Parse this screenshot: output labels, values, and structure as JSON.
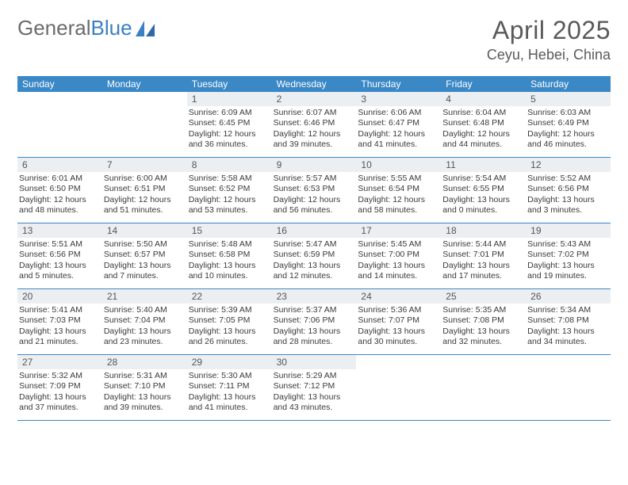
{
  "brand": {
    "part1": "General",
    "part2": "Blue"
  },
  "title": "April 2025",
  "location": "Ceyu, Hebei, China",
  "weekdays": [
    "Sunday",
    "Monday",
    "Tuesday",
    "Wednesday",
    "Thursday",
    "Friday",
    "Saturday"
  ],
  "colors": {
    "header_bg": "#3b88c6",
    "header_text": "#ffffff",
    "daynum_bg": "#eceff2",
    "rule": "#3b88c6",
    "brand_gray": "#6b6b6b",
    "brand_blue": "#3b7fc4"
  },
  "weeks": [
    [
      {
        "n": "",
        "sunrise": "",
        "sunset": "",
        "daylight": ""
      },
      {
        "n": "",
        "sunrise": "",
        "sunset": "",
        "daylight": ""
      },
      {
        "n": "1",
        "sunrise": "Sunrise: 6:09 AM",
        "sunset": "Sunset: 6:45 PM",
        "daylight": "Daylight: 12 hours and 36 minutes."
      },
      {
        "n": "2",
        "sunrise": "Sunrise: 6:07 AM",
        "sunset": "Sunset: 6:46 PM",
        "daylight": "Daylight: 12 hours and 39 minutes."
      },
      {
        "n": "3",
        "sunrise": "Sunrise: 6:06 AM",
        "sunset": "Sunset: 6:47 PM",
        "daylight": "Daylight: 12 hours and 41 minutes."
      },
      {
        "n": "4",
        "sunrise": "Sunrise: 6:04 AM",
        "sunset": "Sunset: 6:48 PM",
        "daylight": "Daylight: 12 hours and 44 minutes."
      },
      {
        "n": "5",
        "sunrise": "Sunrise: 6:03 AM",
        "sunset": "Sunset: 6:49 PM",
        "daylight": "Daylight: 12 hours and 46 minutes."
      }
    ],
    [
      {
        "n": "6",
        "sunrise": "Sunrise: 6:01 AM",
        "sunset": "Sunset: 6:50 PM",
        "daylight": "Daylight: 12 hours and 48 minutes."
      },
      {
        "n": "7",
        "sunrise": "Sunrise: 6:00 AM",
        "sunset": "Sunset: 6:51 PM",
        "daylight": "Daylight: 12 hours and 51 minutes."
      },
      {
        "n": "8",
        "sunrise": "Sunrise: 5:58 AM",
        "sunset": "Sunset: 6:52 PM",
        "daylight": "Daylight: 12 hours and 53 minutes."
      },
      {
        "n": "9",
        "sunrise": "Sunrise: 5:57 AM",
        "sunset": "Sunset: 6:53 PM",
        "daylight": "Daylight: 12 hours and 56 minutes."
      },
      {
        "n": "10",
        "sunrise": "Sunrise: 5:55 AM",
        "sunset": "Sunset: 6:54 PM",
        "daylight": "Daylight: 12 hours and 58 minutes."
      },
      {
        "n": "11",
        "sunrise": "Sunrise: 5:54 AM",
        "sunset": "Sunset: 6:55 PM",
        "daylight": "Daylight: 13 hours and 0 minutes."
      },
      {
        "n": "12",
        "sunrise": "Sunrise: 5:52 AM",
        "sunset": "Sunset: 6:56 PM",
        "daylight": "Daylight: 13 hours and 3 minutes."
      }
    ],
    [
      {
        "n": "13",
        "sunrise": "Sunrise: 5:51 AM",
        "sunset": "Sunset: 6:56 PM",
        "daylight": "Daylight: 13 hours and 5 minutes."
      },
      {
        "n": "14",
        "sunrise": "Sunrise: 5:50 AM",
        "sunset": "Sunset: 6:57 PM",
        "daylight": "Daylight: 13 hours and 7 minutes."
      },
      {
        "n": "15",
        "sunrise": "Sunrise: 5:48 AM",
        "sunset": "Sunset: 6:58 PM",
        "daylight": "Daylight: 13 hours and 10 minutes."
      },
      {
        "n": "16",
        "sunrise": "Sunrise: 5:47 AM",
        "sunset": "Sunset: 6:59 PM",
        "daylight": "Daylight: 13 hours and 12 minutes."
      },
      {
        "n": "17",
        "sunrise": "Sunrise: 5:45 AM",
        "sunset": "Sunset: 7:00 PM",
        "daylight": "Daylight: 13 hours and 14 minutes."
      },
      {
        "n": "18",
        "sunrise": "Sunrise: 5:44 AM",
        "sunset": "Sunset: 7:01 PM",
        "daylight": "Daylight: 13 hours and 17 minutes."
      },
      {
        "n": "19",
        "sunrise": "Sunrise: 5:43 AM",
        "sunset": "Sunset: 7:02 PM",
        "daylight": "Daylight: 13 hours and 19 minutes."
      }
    ],
    [
      {
        "n": "20",
        "sunrise": "Sunrise: 5:41 AM",
        "sunset": "Sunset: 7:03 PM",
        "daylight": "Daylight: 13 hours and 21 minutes."
      },
      {
        "n": "21",
        "sunrise": "Sunrise: 5:40 AM",
        "sunset": "Sunset: 7:04 PM",
        "daylight": "Daylight: 13 hours and 23 minutes."
      },
      {
        "n": "22",
        "sunrise": "Sunrise: 5:39 AM",
        "sunset": "Sunset: 7:05 PM",
        "daylight": "Daylight: 13 hours and 26 minutes."
      },
      {
        "n": "23",
        "sunrise": "Sunrise: 5:37 AM",
        "sunset": "Sunset: 7:06 PM",
        "daylight": "Daylight: 13 hours and 28 minutes."
      },
      {
        "n": "24",
        "sunrise": "Sunrise: 5:36 AM",
        "sunset": "Sunset: 7:07 PM",
        "daylight": "Daylight: 13 hours and 30 minutes."
      },
      {
        "n": "25",
        "sunrise": "Sunrise: 5:35 AM",
        "sunset": "Sunset: 7:08 PM",
        "daylight": "Daylight: 13 hours and 32 minutes."
      },
      {
        "n": "26",
        "sunrise": "Sunrise: 5:34 AM",
        "sunset": "Sunset: 7:08 PM",
        "daylight": "Daylight: 13 hours and 34 minutes."
      }
    ],
    [
      {
        "n": "27",
        "sunrise": "Sunrise: 5:32 AM",
        "sunset": "Sunset: 7:09 PM",
        "daylight": "Daylight: 13 hours and 37 minutes."
      },
      {
        "n": "28",
        "sunrise": "Sunrise: 5:31 AM",
        "sunset": "Sunset: 7:10 PM",
        "daylight": "Daylight: 13 hours and 39 minutes."
      },
      {
        "n": "29",
        "sunrise": "Sunrise: 5:30 AM",
        "sunset": "Sunset: 7:11 PM",
        "daylight": "Daylight: 13 hours and 41 minutes."
      },
      {
        "n": "30",
        "sunrise": "Sunrise: 5:29 AM",
        "sunset": "Sunset: 7:12 PM",
        "daylight": "Daylight: 13 hours and 43 minutes."
      },
      {
        "n": "",
        "sunrise": "",
        "sunset": "",
        "daylight": ""
      },
      {
        "n": "",
        "sunrise": "",
        "sunset": "",
        "daylight": ""
      },
      {
        "n": "",
        "sunrise": "",
        "sunset": "",
        "daylight": ""
      }
    ]
  ]
}
